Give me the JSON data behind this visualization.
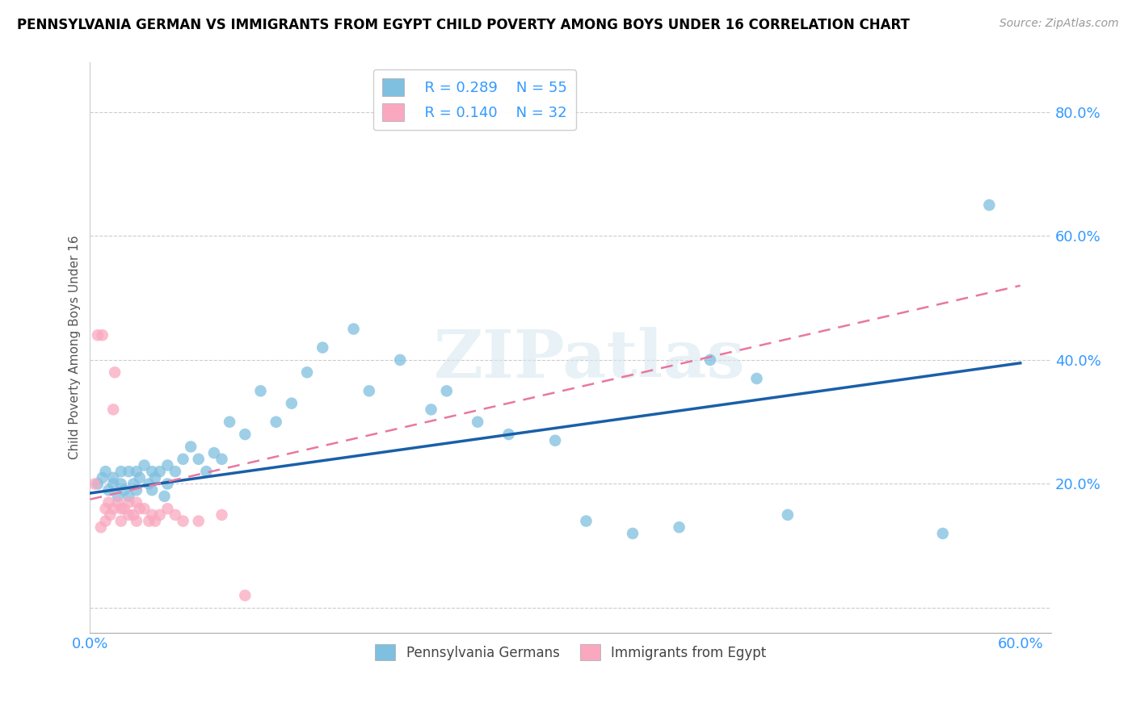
{
  "title": "PENNSYLVANIA GERMAN VS IMMIGRANTS FROM EGYPT CHILD POVERTY AMONG BOYS UNDER 16 CORRELATION CHART",
  "source": "Source: ZipAtlas.com",
  "xlabel": "",
  "ylabel": "Child Poverty Among Boys Under 16",
  "xlim": [
    0.0,
    0.62
  ],
  "ylim": [
    -0.04,
    0.88
  ],
  "ytick_positions": [
    0.0,
    0.2,
    0.4,
    0.6,
    0.8
  ],
  "ytick_labels": [
    "",
    "20.0%",
    "40.0%",
    "60.0%",
    "80.0%"
  ],
  "xtick_positions": [
    0.0,
    0.6
  ],
  "xtick_labels": [
    "0.0%",
    "60.0%"
  ],
  "blue_color": "#7fbfdf",
  "pink_color": "#f9a8c0",
  "blue_line_color": "#1a5fa8",
  "pink_line_color": "#e878a0",
  "r_color": "#3399ff",
  "n_color": "#3399ff",
  "legend_r1": "R = 0.289",
  "legend_n1": "N = 55",
  "legend_r2": "R = 0.140",
  "legend_n2": "N = 32",
  "watermark": "ZIPatlas",
  "blue_line_x0": 0.0,
  "blue_line_y0": 0.185,
  "blue_line_x1": 0.6,
  "blue_line_y1": 0.395,
  "pink_line_x0": 0.0,
  "pink_line_y0": 0.175,
  "pink_line_x1": 0.6,
  "pink_line_y1": 0.52,
  "blue_scatter_x": [
    0.005,
    0.008,
    0.01,
    0.012,
    0.015,
    0.015,
    0.018,
    0.02,
    0.02,
    0.022,
    0.025,
    0.025,
    0.028,
    0.03,
    0.03,
    0.032,
    0.035,
    0.038,
    0.04,
    0.04,
    0.042,
    0.045,
    0.048,
    0.05,
    0.05,
    0.055,
    0.06,
    0.065,
    0.07,
    0.075,
    0.08,
    0.085,
    0.09,
    0.1,
    0.11,
    0.12,
    0.13,
    0.14,
    0.15,
    0.17,
    0.18,
    0.2,
    0.22,
    0.23,
    0.25,
    0.27,
    0.3,
    0.32,
    0.35,
    0.38,
    0.4,
    0.43,
    0.45,
    0.55,
    0.58
  ],
  "blue_scatter_y": [
    0.2,
    0.21,
    0.22,
    0.19,
    0.2,
    0.21,
    0.18,
    0.22,
    0.2,
    0.19,
    0.22,
    0.18,
    0.2,
    0.22,
    0.19,
    0.21,
    0.23,
    0.2,
    0.22,
    0.19,
    0.21,
    0.22,
    0.18,
    0.23,
    0.2,
    0.22,
    0.24,
    0.26,
    0.24,
    0.22,
    0.25,
    0.24,
    0.3,
    0.28,
    0.35,
    0.3,
    0.33,
    0.38,
    0.42,
    0.45,
    0.35,
    0.4,
    0.32,
    0.35,
    0.3,
    0.28,
    0.27,
    0.14,
    0.12,
    0.13,
    0.4,
    0.37,
    0.15,
    0.12,
    0.65
  ],
  "pink_scatter_x": [
    0.003,
    0.005,
    0.007,
    0.008,
    0.01,
    0.01,
    0.012,
    0.013,
    0.015,
    0.015,
    0.016,
    0.018,
    0.02,
    0.02,
    0.022,
    0.025,
    0.025,
    0.028,
    0.03,
    0.03,
    0.032,
    0.035,
    0.038,
    0.04,
    0.042,
    0.045,
    0.05,
    0.055,
    0.06,
    0.07,
    0.085,
    0.1
  ],
  "pink_scatter_y": [
    0.2,
    0.44,
    0.13,
    0.44,
    0.16,
    0.14,
    0.17,
    0.15,
    0.16,
    0.32,
    0.38,
    0.17,
    0.16,
    0.14,
    0.16,
    0.17,
    0.15,
    0.15,
    0.14,
    0.17,
    0.16,
    0.16,
    0.14,
    0.15,
    0.14,
    0.15,
    0.16,
    0.15,
    0.14,
    0.14,
    0.15,
    0.02
  ]
}
